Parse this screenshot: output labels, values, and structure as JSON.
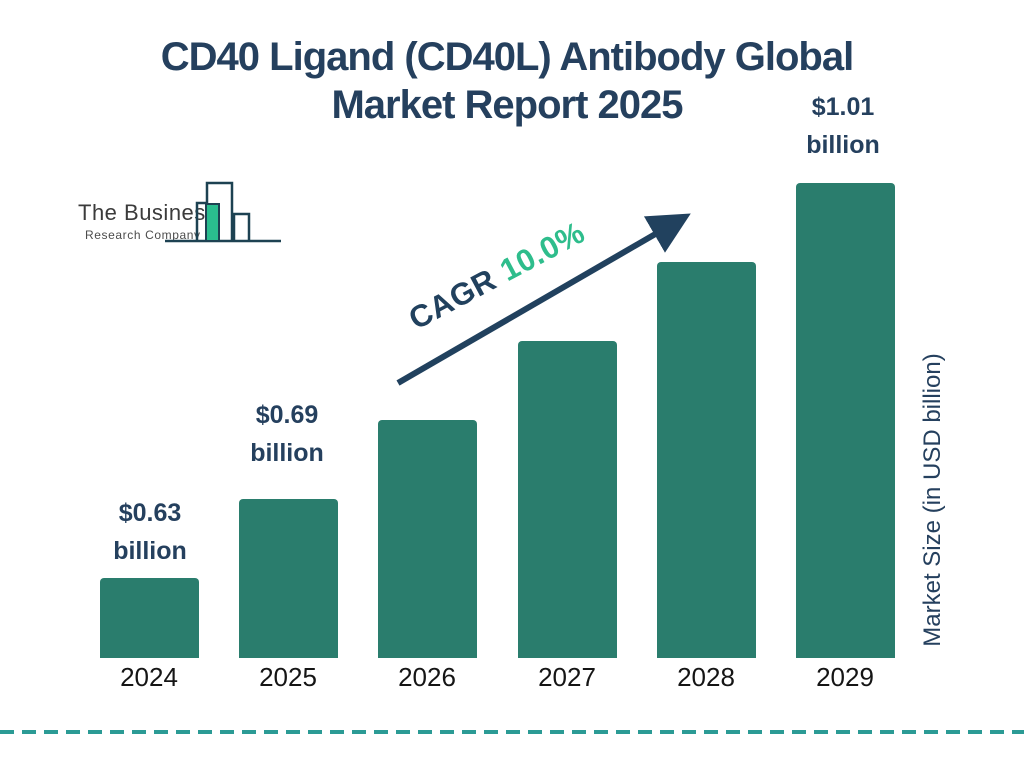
{
  "title_line1": "CD40 Ligand (CD40L) Antibody Global",
  "title_line2": "Market Report 2025",
  "logo": {
    "name": "The Business",
    "tagline": "Research Company"
  },
  "annotation": {
    "cagr_label": "CAGR",
    "cagr_value": "10.0%"
  },
  "y_axis_label": "Market Size (in USD billion)",
  "chart_data": {
    "type": "bar",
    "title": "CD40 Ligand (CD40L) Antibody Global Market Report 2025",
    "categories": [
      "2024",
      "2025",
      "2026",
      "2027",
      "2028",
      "2029"
    ],
    "values": [
      0.63,
      0.69,
      0.76,
      0.84,
      0.92,
      1.01
    ],
    "values_estimated_indices": [
      2,
      3,
      4
    ],
    "unit": "USD billion",
    "ylabel": "Market Size (in USD billion)",
    "cagr_percent": 10.0,
    "legend": "none",
    "grid": "off",
    "value_callouts": [
      {
        "bar_index": 0,
        "category": "2024",
        "line1": "$0.63",
        "line2": "billion"
      },
      {
        "bar_index": 1,
        "category": "2025",
        "line1": "$0.69",
        "line2": "billion"
      },
      {
        "bar_index": 5,
        "category": "2029",
        "line1": "$1.01",
        "line2": "billion"
      }
    ]
  },
  "colors": {
    "accent_navy": "#25405e",
    "bar_teal": "#2a7d6d",
    "accent_green": "#2ebd8c",
    "dash_teal": "#2b9b95",
    "logo_outline": "#1d4252",
    "logo_green": "#2abd8e"
  }
}
